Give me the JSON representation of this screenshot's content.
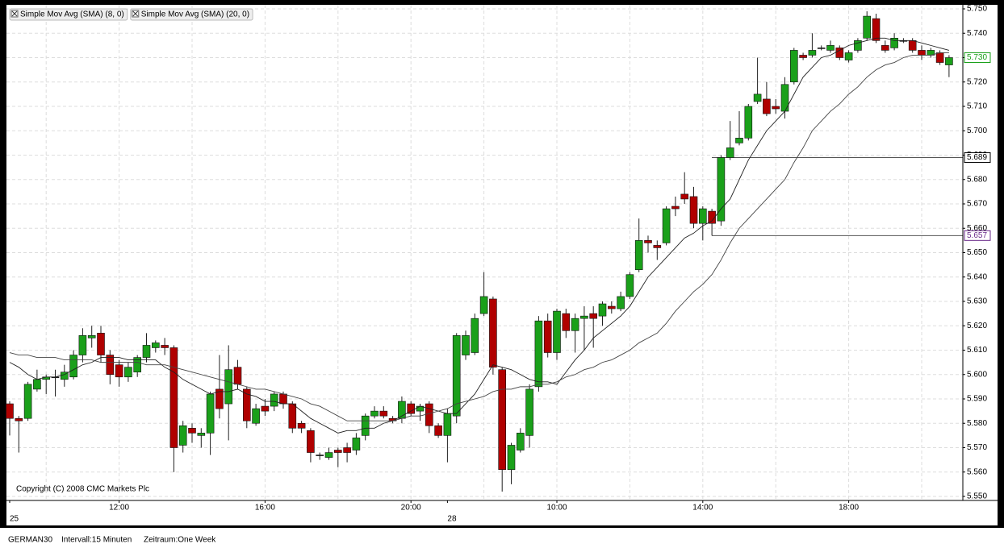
{
  "chart_data": {
    "type": "candlestick",
    "legend": [
      "Simple Mov Avg (SMA) (8, 0)",
      "Simple Mov Avg (SMA) (20, 0)"
    ],
    "copyright": "Copyright (C) 2008 CMC Markets Plc",
    "footer": [
      "GERMAN30",
      "Intervall:15 Minuten",
      "Zeitraum:One Week"
    ],
    "up_color": "#1aa01a",
    "down_color": "#b00000",
    "categories": [
      "25",
      null,
      null,
      null,
      null,
      null,
      null,
      null,
      null,
      null,
      null,
      null,
      "12:00",
      null,
      null,
      null,
      null,
      null,
      null,
      null,
      null,
      null,
      null,
      null,
      null,
      null,
      null,
      null,
      "16:00",
      null,
      null,
      null,
      null,
      null,
      null,
      null,
      null,
      null,
      null,
      null,
      null,
      null,
      null,
      null,
      "20:00",
      null,
      null,
      null,
      "28",
      null,
      null,
      null,
      null,
      null,
      null,
      null,
      null,
      null,
      null,
      null,
      "10:00",
      null,
      null,
      null,
      null,
      null,
      null,
      null,
      null,
      null,
      null,
      null,
      null,
      null,
      null,
      null,
      "14:00",
      null,
      null,
      null,
      null,
      null,
      null,
      null,
      null,
      null,
      null,
      null,
      null,
      null,
      null,
      null,
      "18:00",
      null,
      null,
      null,
      null,
      null,
      null,
      null,
      null,
      null,
      null,
      null
    ],
    "open": [
      5.588,
      5.582,
      5.582,
      5.594,
      5.598,
      5.599,
      5.598,
      5.599,
      5.608,
      5.615,
      5.617,
      5.608,
      5.604,
      5.599,
      5.601,
      5.607,
      5.611,
      5.612,
      5.611,
      5.571,
      5.578,
      5.575,
      5.576,
      5.594,
      5.588,
      5.603,
      5.594,
      5.58,
      5.587,
      5.587,
      5.592,
      5.588,
      5.58,
      5.577,
      5.567,
      5.566,
      5.569,
      5.57,
      5.569,
      5.575,
      5.583,
      5.585,
      5.582,
      5.582,
      5.588,
      5.585,
      5.588,
      5.579,
      5.575,
      5.583,
      5.608,
      5.609,
      5.625,
      5.631,
      5.602,
      5.561,
      5.569,
      5.575,
      5.595,
      5.622,
      5.609,
      5.625,
      5.618,
      5.623,
      5.625,
      5.624,
      5.628,
      5.627,
      5.632,
      5.643,
      5.655,
      5.653,
      5.654,
      5.669,
      5.674,
      5.673,
      5.662,
      5.667,
      5.663,
      5.689,
      5.695,
      5.697,
      5.712,
      5.713,
      5.71,
      5.708,
      5.72,
      5.731,
      5.731,
      5.734,
      5.733,
      5.734,
      5.729,
      5.733,
      5.738,
      5.746,
      5.735,
      5.734,
      5.737,
      5.737,
      5.733,
      5.731,
      5.732,
      5.727
    ],
    "high": [
      5.589,
      5.583,
      5.597,
      5.602,
      5.6,
      5.602,
      5.604,
      5.61,
      5.619,
      5.62,
      5.62,
      5.61,
      5.606,
      5.605,
      5.608,
      5.617,
      5.614,
      5.615,
      5.612,
      5.581,
      5.58,
      5.578,
      5.593,
      5.608,
      5.612,
      5.606,
      5.595,
      5.588,
      5.59,
      5.593,
      5.593,
      5.589,
      5.581,
      5.578,
      5.568,
      5.57,
      5.57,
      5.572,
      5.576,
      5.584,
      5.587,
      5.587,
      5.583,
      5.591,
      5.589,
      5.588,
      5.589,
      5.58,
      5.586,
      5.617,
      5.618,
      5.625,
      5.642,
      5.632,
      5.603,
      5.572,
      5.578,
      5.596,
      5.624,
      5.625,
      5.627,
      5.627,
      5.625,
      5.628,
      5.628,
      5.63,
      5.63,
      5.634,
      5.642,
      5.664,
      5.657,
      5.655,
      5.669,
      5.673,
      5.683,
      5.677,
      5.669,
      5.668,
      5.69,
      5.704,
      5.708,
      5.711,
      5.73,
      5.72,
      5.713,
      5.722,
      5.734,
      5.732,
      5.74,
      5.735,
      5.737,
      5.735,
      5.733,
      5.738,
      5.749,
      5.748,
      5.737,
      5.74,
      5.738,
      5.738,
      5.735,
      5.734,
      5.733,
      5.731
    ],
    "low": [
      5.575,
      5.568,
      5.581,
      5.593,
      5.592,
      5.591,
      5.595,
      5.598,
      5.605,
      5.611,
      5.605,
      5.596,
      5.595,
      5.597,
      5.599,
      5.605,
      5.609,
      5.608,
      5.56,
      5.568,
      5.572,
      5.57,
      5.567,
      5.582,
      5.573,
      5.594,
      5.578,
      5.579,
      5.583,
      5.585,
      5.586,
      5.576,
      5.576,
      5.564,
      5.565,
      5.565,
      5.562,
      5.564,
      5.567,
      5.573,
      5.582,
      5.582,
      5.58,
      5.58,
      5.583,
      5.581,
      5.576,
      5.574,
      5.564,
      5.58,
      5.606,
      5.608,
      5.624,
      5.6,
      5.552,
      5.555,
      5.568,
      5.57,
      5.593,
      5.607,
      5.606,
      5.615,
      5.609,
      5.61,
      5.611,
      5.62,
      5.625,
      5.626,
      5.631,
      5.642,
      5.65,
      5.647,
      5.653,
      5.665,
      5.67,
      5.66,
      5.655,
      5.657,
      5.661,
      5.688,
      5.694,
      5.696,
      5.711,
      5.706,
      5.707,
      5.705,
      5.719,
      5.729,
      5.73,
      5.733,
      5.732,
      5.729,
      5.728,
      5.732,
      5.737,
      5.736,
      5.732,
      5.733,
      5.736,
      5.732,
      5.729,
      5.73,
      5.727,
      5.722
    ],
    "close": [
      5.582,
      5.581,
      5.596,
      5.598,
      5.599,
      5.599,
      5.601,
      5.608,
      5.616,
      5.616,
      5.608,
      5.6,
      5.599,
      5.603,
      5.607,
      5.612,
      5.613,
      5.611,
      5.57,
      5.579,
      5.576,
      5.576,
      5.592,
      5.586,
      5.602,
      5.596,
      5.581,
      5.586,
      5.585,
      5.592,
      5.588,
      5.578,
      5.578,
      5.568,
      5.567,
      5.568,
      5.568,
      5.568,
      5.574,
      5.583,
      5.585,
      5.583,
      5.581,
      5.589,
      5.584,
      5.587,
      5.579,
      5.575,
      5.584,
      5.616,
      5.616,
      5.623,
      5.632,
      5.603,
      5.561,
      5.571,
      5.576,
      5.594,
      5.622,
      5.609,
      5.626,
      5.618,
      5.623,
      5.624,
      5.623,
      5.629,
      5.627,
      5.632,
      5.641,
      5.655,
      5.654,
      5.652,
      5.668,
      5.668,
      5.672,
      5.662,
      5.668,
      5.662,
      5.689,
      5.693,
      5.697,
      5.71,
      5.715,
      5.707,
      5.709,
      5.719,
      5.733,
      5.73,
      5.733,
      5.734,
      5.735,
      5.73,
      5.732,
      5.737,
      5.747,
      5.737,
      5.733,
      5.738,
      5.737,
      5.733,
      5.731,
      5.733,
      5.728,
      5.73
    ],
    "series": [
      {
        "name": "Simple Mov Avg (SMA) (8, 0)",
        "color": "#222222",
        "values": [
          5.605,
          5.603,
          5.6,
          5.598,
          5.599,
          5.599,
          5.6,
          5.602,
          5.604,
          5.605,
          5.607,
          5.607,
          5.607,
          5.606,
          5.606,
          5.606,
          5.606,
          5.603,
          5.601,
          5.598,
          5.596,
          5.594,
          5.592,
          5.593,
          5.593,
          5.594,
          5.592,
          5.591,
          5.589,
          5.589,
          5.588,
          5.588,
          5.585,
          5.582,
          5.58,
          5.578,
          5.576,
          5.577,
          5.577,
          5.578,
          5.578,
          5.58,
          5.581,
          5.583,
          5.585,
          5.587,
          5.586,
          5.585,
          5.584,
          5.584,
          5.588,
          5.592,
          5.598,
          5.604,
          5.603,
          5.602,
          5.6,
          5.598,
          5.597,
          5.597,
          5.596,
          5.601,
          5.606,
          5.61,
          5.615,
          5.618,
          5.621,
          5.624,
          5.628,
          5.634,
          5.64,
          5.644,
          5.648,
          5.652,
          5.656,
          5.658,
          5.661,
          5.663,
          5.668,
          5.672,
          5.68,
          5.688,
          5.694,
          5.7,
          5.704,
          5.708,
          5.715,
          5.722,
          5.726,
          5.73,
          5.731,
          5.733,
          5.735,
          5.736,
          5.737,
          5.738,
          5.738,
          5.737,
          5.737,
          5.737,
          5.736,
          5.735,
          5.734,
          5.733
        ]
      },
      {
        "name": "Simple Mov Avg (SMA) (20, 0)",
        "color": "#444444",
        "values": [
          5.609,
          5.608,
          5.608,
          5.607,
          5.607,
          5.607,
          5.606,
          5.606,
          5.606,
          5.606,
          5.605,
          5.605,
          5.605,
          5.605,
          5.605,
          5.604,
          5.604,
          5.604,
          5.603,
          5.602,
          5.601,
          5.6,
          5.599,
          5.598,
          5.597,
          5.596,
          5.595,
          5.594,
          5.594,
          5.593,
          5.592,
          5.591,
          5.59,
          5.588,
          5.587,
          5.585,
          5.583,
          5.581,
          5.581,
          5.581,
          5.581,
          5.581,
          5.581,
          5.582,
          5.583,
          5.583,
          5.584,
          5.585,
          5.586,
          5.588,
          5.589,
          5.59,
          5.591,
          5.593,
          5.594,
          5.594,
          5.595,
          5.595,
          5.596,
          5.596,
          5.597,
          5.599,
          5.6,
          5.602,
          5.603,
          5.605,
          5.606,
          5.608,
          5.61,
          5.613,
          5.615,
          5.617,
          5.621,
          5.626,
          5.63,
          5.634,
          5.637,
          5.641,
          5.647,
          5.654,
          5.66,
          5.664,
          5.668,
          5.672,
          5.676,
          5.68,
          5.687,
          5.693,
          5.7,
          5.704,
          5.708,
          5.711,
          5.715,
          5.718,
          5.722,
          5.725,
          5.727,
          5.728,
          5.73,
          5.731,
          5.731,
          5.731,
          5.732,
          5.732
        ]
      }
    ],
    "price_lines": [
      {
        "value": 5.689,
        "label": "5.689",
        "color": "#000000"
      },
      {
        "value": 5.657,
        "label": "5.657",
        "color": "#6a2a8a"
      }
    ],
    "last_price": {
      "value": 5.73,
      "label": "5.730",
      "color": "#1aa01a"
    },
    "ylim": [
      5.55,
      5.75
    ],
    "yticks": [
      {
        "value": 5.55,
        "label": "5.550"
      },
      {
        "value": 5.56,
        "label": "5.560"
      },
      {
        "value": 5.57,
        "label": "5.570"
      },
      {
        "value": 5.58,
        "label": "5.580"
      },
      {
        "value": 5.59,
        "label": "5.590"
      },
      {
        "value": 5.6,
        "label": "5.600"
      },
      {
        "value": 5.61,
        "label": "5.610"
      },
      {
        "value": 5.62,
        "label": "5.620"
      },
      {
        "value": 5.63,
        "label": "5.630"
      },
      {
        "value": 5.64,
        "label": "5.640"
      },
      {
        "value": 5.65,
        "label": "5.650"
      },
      {
        "value": 5.66,
        "label": "5.660"
      },
      {
        "value": 5.67,
        "label": "5.670"
      },
      {
        "value": 5.68,
        "label": "5.680"
      },
      {
        "value": 5.69,
        "label": "5.690"
      },
      {
        "value": 5.7,
        "label": "5.700"
      },
      {
        "value": 5.71,
        "label": "5.710"
      },
      {
        "value": 5.72,
        "label": "5.720"
      },
      {
        "value": 5.73,
        "label": "5.730"
      },
      {
        "value": 5.74,
        "label": "5.740"
      },
      {
        "value": 5.75,
        "label": "5.750"
      }
    ],
    "grid": true
  }
}
